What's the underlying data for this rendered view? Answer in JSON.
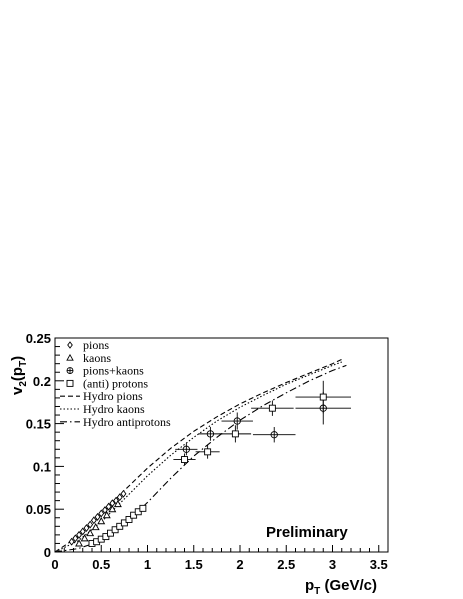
{
  "chart_data": {
    "type": "scatter",
    "title": "",
    "xlabel": "p",
    "xlabel_sub": "T",
    "xlabel_unit": " (GeV/c)",
    "ylabel": "v",
    "ylabel_sub": "2",
    "ylabel_arg": "(p",
    "ylabel_arg_sub": "T",
    "ylabel_close": ")",
    "xlim": [
      0,
      3.6
    ],
    "ylim": [
      0,
      0.25
    ],
    "xticks": [
      "0",
      "0.5",
      "1",
      "1.5",
      "2",
      "2.5",
      "3",
      "3.5"
    ],
    "yticks": [
      "0",
      "0.05",
      "0.1",
      "0.15",
      "0.2",
      "0.25"
    ],
    "annotation": "Preliminary",
    "legend_position": "top-left",
    "grid": false,
    "legend": [
      {
        "label": "pions",
        "marker": "diamond"
      },
      {
        "label": "kaons",
        "marker": "triangle"
      },
      {
        "label": "pions+kaons",
        "marker": "cross-circle"
      },
      {
        "label": "(anti) protons",
        "marker": "square"
      },
      {
        "label": "Hydro pions",
        "line": "dashed"
      },
      {
        "label": "Hydro kaons",
        "line": "dotted"
      },
      {
        "label": "Hydro antiprotons",
        "line": "dashdot"
      }
    ],
    "series": [
      {
        "name": "pions",
        "marker": "diamond",
        "x": [
          0.18,
          0.22,
          0.26,
          0.3,
          0.34,
          0.38,
          0.42,
          0.46,
          0.5,
          0.54,
          0.58,
          0.62,
          0.66,
          0.7,
          0.74
        ],
        "y": [
          0.012,
          0.016,
          0.02,
          0.024,
          0.028,
          0.032,
          0.037,
          0.041,
          0.045,
          0.049,
          0.053,
          0.057,
          0.06,
          0.064,
          0.068
        ],
        "xerr": [],
        "yerr": []
      },
      {
        "name": "kaons",
        "marker": "triangle",
        "x": [
          0.26,
          0.32,
          0.38,
          0.44,
          0.5,
          0.56,
          0.62,
          0.68
        ],
        "y": [
          0.01,
          0.016,
          0.022,
          0.029,
          0.036,
          0.043,
          0.05,
          0.056
        ],
        "xerr": [],
        "yerr": []
      },
      {
        "name": "pions+kaons",
        "marker": "cross-circle",
        "x": [
          1.42,
          1.68,
          1.97,
          2.37,
          2.9
        ],
        "y": [
          0.12,
          0.138,
          0.153,
          0.137,
          0.168
        ],
        "xerr": [
          0.12,
          0.13,
          0.17,
          0.23,
          0.3
        ],
        "yerr": [
          0.007,
          0.008,
          0.01,
          0.009,
          0.019
        ]
      },
      {
        "name": "(anti) protons",
        "marker": "square",
        "x": [
          0.4,
          0.45,
          0.5,
          0.55,
          0.6,
          0.65,
          0.7,
          0.75,
          0.8,
          0.85,
          0.9,
          0.95,
          1.4,
          1.65,
          1.95,
          2.35,
          2.9
        ],
        "y": [
          0.01,
          0.012,
          0.015,
          0.018,
          0.022,
          0.026,
          0.03,
          0.034,
          0.038,
          0.043,
          0.047,
          0.051,
          0.108,
          0.117,
          0.138,
          0.168,
          0.181
        ],
        "xerr": [
          0,
          0,
          0,
          0,
          0,
          0,
          0,
          0,
          0,
          0,
          0,
          0,
          0.12,
          0.13,
          0.17,
          0.23,
          0.3
        ],
        "yerr": [
          0,
          0,
          0,
          0,
          0,
          0,
          0,
          0,
          0,
          0,
          0,
          0,
          0.007,
          0.008,
          0.01,
          0.009,
          0.019
        ]
      },
      {
        "name": "Hydro pions",
        "line": "dashed",
        "x": [
          0,
          0.25,
          0.5,
          0.75,
          1.0,
          1.25,
          1.5,
          1.75,
          2.0,
          2.25,
          2.5,
          2.75,
          3.0,
          3.1
        ],
        "y": [
          0,
          0.018,
          0.044,
          0.072,
          0.098,
          0.121,
          0.141,
          0.158,
          0.173,
          0.186,
          0.198,
          0.209,
          0.22,
          0.225
        ]
      },
      {
        "name": "Hydro kaons",
        "line": "dotted",
        "x": [
          0,
          0.25,
          0.5,
          0.75,
          1.0,
          1.25,
          1.5,
          1.75,
          2.0,
          2.25,
          2.5,
          2.75,
          3.0,
          3.1
        ],
        "y": [
          0,
          0.013,
          0.035,
          0.062,
          0.089,
          0.113,
          0.134,
          0.153,
          0.169,
          0.183,
          0.196,
          0.207,
          0.218,
          0.222
        ]
      },
      {
        "name": "Hydro antiprotons",
        "line": "dashdot",
        "x": [
          0,
          0.25,
          0.5,
          0.75,
          1.0,
          1.25,
          1.5,
          1.75,
          2.0,
          2.25,
          2.5,
          2.75,
          3.0,
          3.15
        ],
        "y": [
          0,
          0.004,
          0.013,
          0.032,
          0.058,
          0.086,
          0.112,
          0.134,
          0.154,
          0.171,
          0.186,
          0.2,
          0.212,
          0.218
        ]
      }
    ]
  }
}
